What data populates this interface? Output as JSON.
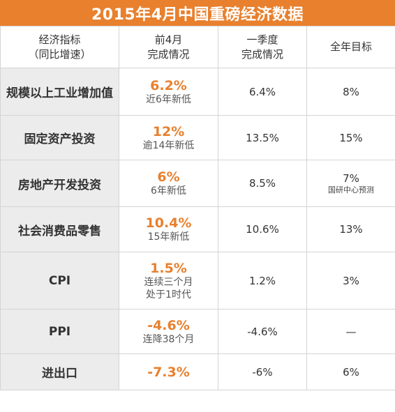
{
  "title": "2015年4月中国重磅经济数据",
  "headers": {
    "indicator_line1": "经济指标",
    "indicator_line2": "（同比增速）",
    "april_line1": "前4月",
    "april_line2": "完成情况",
    "q1_line1": "一季度",
    "q1_line2": "完成情况",
    "goal": "全年目标"
  },
  "rows": [
    {
      "name": "规模以上工业增加值",
      "april": "6.2%",
      "april_note": "近6年新低",
      "april_note2": "",
      "q1": "6.4%",
      "goal": "8%",
      "goal_note": ""
    },
    {
      "name": "固定资产投资",
      "april": "12%",
      "april_note": "逾14年新低",
      "april_note2": "",
      "q1": "13.5%",
      "goal": "15%",
      "goal_note": ""
    },
    {
      "name": "房地产开发投资",
      "april": "6%",
      "april_note": "6年新低",
      "april_note2": "",
      "q1": "8.5%",
      "goal": "7%",
      "goal_note": "国研中心预测"
    },
    {
      "name": "社会消费品零售",
      "april": "10.4%",
      "april_note": "15年新低",
      "april_note2": "",
      "q1": "10.6%",
      "goal": "13%",
      "goal_note": ""
    },
    {
      "name": "CPI",
      "april": "1.5%",
      "april_note": "连续三个月",
      "april_note2": "处于1时代",
      "q1": "1.2%",
      "goal": "3%",
      "goal_note": ""
    },
    {
      "name": "PPI",
      "april": "-4.6%",
      "april_note": "连降38个月",
      "april_note2": "",
      "q1": "-4.6%",
      "goal": "—",
      "goal_note": ""
    },
    {
      "name": "进出口",
      "april": "-7.3%",
      "april_note": "",
      "april_note2": "",
      "q1": "-6%",
      "goal": "6%",
      "goal_note": ""
    }
  ],
  "colors": {
    "accent": "#e8802e",
    "name_bg": "#ececec",
    "border": "#d4d4d4"
  }
}
